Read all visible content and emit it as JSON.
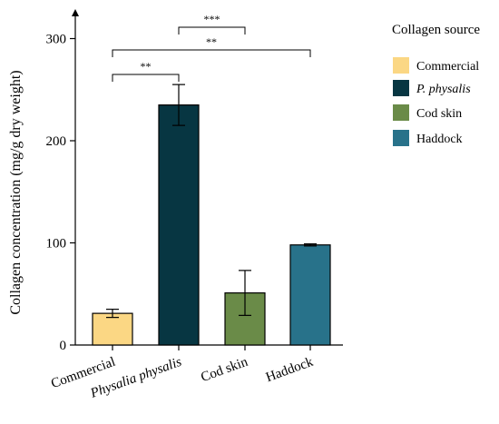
{
  "chart_data": {
    "type": "bar",
    "title": "",
    "xlabel": "",
    "ylabel": "Collagen concentration (mg/g dry weight)",
    "ylim": [
      0,
      330
    ],
    "yticks": [
      0,
      100,
      200,
      300
    ],
    "categories": [
      "Commercial",
      "Physalia physalis",
      "Cod skin",
      "Haddock"
    ],
    "categories_italic": [
      false,
      true,
      false,
      false
    ],
    "values": [
      31,
      235,
      51,
      98
    ],
    "errors": [
      4,
      20,
      22,
      1
    ],
    "colors": [
      "#FBD784",
      "#073642",
      "#6A8B48",
      "#28728A"
    ],
    "legend": {
      "title": "Collagen source",
      "position": "right",
      "items": [
        {
          "label": "Commercial",
          "italic": false,
          "color": "#FBD784"
        },
        {
          "label": "P. physalis",
          "italic": true,
          "color": "#073642"
        },
        {
          "label": "Cod skin",
          "italic": false,
          "color": "#6A8B48"
        },
        {
          "label": "Haddock",
          "italic": false,
          "color": "#28728A"
        }
      ]
    },
    "significance": [
      {
        "from": 1,
        "to": 2,
        "label": "***"
      },
      {
        "from": 0,
        "to": 3,
        "label": "**"
      },
      {
        "from": 0,
        "to": 1,
        "label": "**"
      }
    ]
  }
}
